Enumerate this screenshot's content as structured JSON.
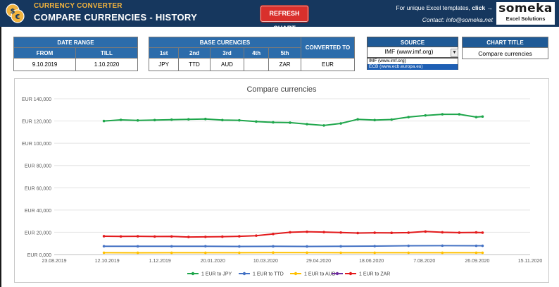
{
  "header": {
    "app_subtitle": "CURRENCY CONVERTER",
    "page_title": "COMPARE CURRENCIES - HISTORY",
    "refresh_label": "REFRESH CHART",
    "promo_text": "For unique Excel templates,",
    "promo_link": "click →",
    "contact": "Contact: info@someka.net",
    "brand_name": "someka",
    "brand_tagline": "Excel Solutions"
  },
  "date_range": {
    "header": "DATE RANGE",
    "from_label": "FROM",
    "till_label": "TILL",
    "from_value": "9.10.2019",
    "till_value": "1.10.2020"
  },
  "base_currencies": {
    "header": "BASE CURENCIES",
    "slots": [
      {
        "label": "1st",
        "value": "JPY"
      },
      {
        "label": "2nd",
        "value": "TTD"
      },
      {
        "label": "3rd",
        "value": "AUD"
      },
      {
        "label": "4th",
        "value": ""
      },
      {
        "label": "5th",
        "value": "ZAR"
      }
    ],
    "converted_label": "CONVERTED TO",
    "converted_value": "EUR"
  },
  "source": {
    "header": "SOURCE",
    "selected": "IMF (www.imf.org)",
    "options": [
      "IMF (www.imf.org)",
      "ECB (www.ecb.europa.eu)"
    ],
    "highlighted_option": "ECB (www.ecb.europa.eu)"
  },
  "chart_title_field": {
    "header": "CHART TITLE",
    "value": "Compare currencies"
  },
  "colors": {
    "banner": "#16375e",
    "header_blue": "#2c6cab",
    "refresh_red": "#d9302c",
    "jpy": "#1ea64b",
    "ttd": "#4472c4",
    "aud": "#ffc000",
    "empty_series": "#7030a0",
    "zar": "#e31a1c"
  },
  "chart_data": {
    "type": "line",
    "title": "Compare currencies",
    "xlabel": "",
    "ylabel": "",
    "x_ticks": [
      "23.08.2019",
      "12.10.2019",
      "1.12.2019",
      "20.01.2020",
      "10.03.2020",
      "29.04.2020",
      "18.06.2020",
      "7.08.2020",
      "26.09.2020",
      "15.11.2020"
    ],
    "y_ticks": [
      "EUR 0,000",
      "EUR 20,000",
      "EUR 40,000",
      "EUR 60,000",
      "EUR 80,000",
      "EUR 100,000",
      "EUR 120,000",
      "EUR 140,000"
    ],
    "xlim": [
      "23.08.2019",
      "15.11.2020"
    ],
    "ylim": [
      0,
      140000
    ],
    "grid": "horizontal",
    "legend_position": "bottom",
    "series": [
      {
        "name": "1 EUR to JPY",
        "color": "#1ea64b",
        "points": [
          [
            "9.10.2019",
            120000
          ],
          [
            "25.10.2019",
            121000
          ],
          [
            "10.11.2019",
            120500
          ],
          [
            "26.11.2019",
            120800
          ],
          [
            "12.12.2019",
            121200
          ],
          [
            "28.12.2019",
            121500
          ],
          [
            "13.01.2020",
            121800
          ],
          [
            "29.01.2020",
            120800
          ],
          [
            "14.02.2020",
            120600
          ],
          [
            "01.03.2020",
            119500
          ],
          [
            "17.03.2020",
            118800
          ],
          [
            "02.04.2020",
            118500
          ],
          [
            "18.04.2020",
            117200
          ],
          [
            "04.05.2020",
            116000
          ],
          [
            "20.05.2020",
            117800
          ],
          [
            "05.06.2020",
            121500
          ],
          [
            "21.06.2020",
            120800
          ],
          [
            "07.07.2020",
            121300
          ],
          [
            "23.07.2020",
            123500
          ],
          [
            "08.08.2020",
            125000
          ],
          [
            "24.08.2020",
            126000
          ],
          [
            "09.09.2020",
            126000
          ],
          [
            "25.09.2020",
            123500
          ],
          [
            "01.10.2020",
            124000
          ]
        ]
      },
      {
        "name": "1 EUR to TTD",
        "color": "#4472c4",
        "points": [
          [
            "9.10.2019",
            7500
          ],
          [
            "10.11.2019",
            7400
          ],
          [
            "12.12.2019",
            7450
          ],
          [
            "13.01.2020",
            7500
          ],
          [
            "14.02.2020",
            7300
          ],
          [
            "17.03.2020",
            7400
          ],
          [
            "18.04.2020",
            7300
          ],
          [
            "20.05.2020",
            7400
          ],
          [
            "21.06.2020",
            7600
          ],
          [
            "23.07.2020",
            7900
          ],
          [
            "24.08.2020",
            8000
          ],
          [
            "25.09.2020",
            7900
          ],
          [
            "01.10.2020",
            7900
          ]
        ]
      },
      {
        "name": "1 EUR to AUD",
        "color": "#ffc000",
        "points": [
          [
            "9.10.2019",
            1630
          ],
          [
            "10.11.2019",
            1610
          ],
          [
            "12.12.2019",
            1620
          ],
          [
            "13.01.2020",
            1620
          ],
          [
            "14.02.2020",
            1640
          ],
          [
            "17.03.2020",
            1780
          ],
          [
            "18.04.2020",
            1710
          ],
          [
            "20.05.2020",
            1660
          ],
          [
            "21.06.2020",
            1630
          ],
          [
            "23.07.2020",
            1630
          ],
          [
            "24.08.2020",
            1620
          ],
          [
            "25.09.2020",
            1650
          ],
          [
            "01.10.2020",
            1640
          ]
        ]
      },
      {
        "name": "",
        "color": "#7030a0",
        "points": []
      },
      {
        "name": "1 EUR to ZAR",
        "color": "#e31a1c",
        "points": [
          [
            "9.10.2019",
            16500
          ],
          [
            "25.10.2019",
            16300
          ],
          [
            "10.11.2019",
            16400
          ],
          [
            "26.11.2019",
            16200
          ],
          [
            "12.12.2019",
            16300
          ],
          [
            "28.12.2019",
            15800
          ],
          [
            "13.01.2020",
            15900
          ],
          [
            "29.01.2020",
            16100
          ],
          [
            "14.02.2020",
            16400
          ],
          [
            "01.03.2020",
            17000
          ],
          [
            "17.03.2020",
            18500
          ],
          [
            "02.04.2020",
            20000
          ],
          [
            "18.04.2020",
            20500
          ],
          [
            "04.05.2020",
            20200
          ],
          [
            "20.05.2020",
            19800
          ],
          [
            "05.06.2020",
            19300
          ],
          [
            "21.06.2020",
            19600
          ],
          [
            "07.07.2020",
            19500
          ],
          [
            "23.07.2020",
            19700
          ],
          [
            "08.08.2020",
            20700
          ],
          [
            "24.08.2020",
            20000
          ],
          [
            "09.09.2020",
            19700
          ],
          [
            "25.09.2020",
            19900
          ],
          [
            "01.10.2020",
            19700
          ]
        ]
      }
    ]
  }
}
